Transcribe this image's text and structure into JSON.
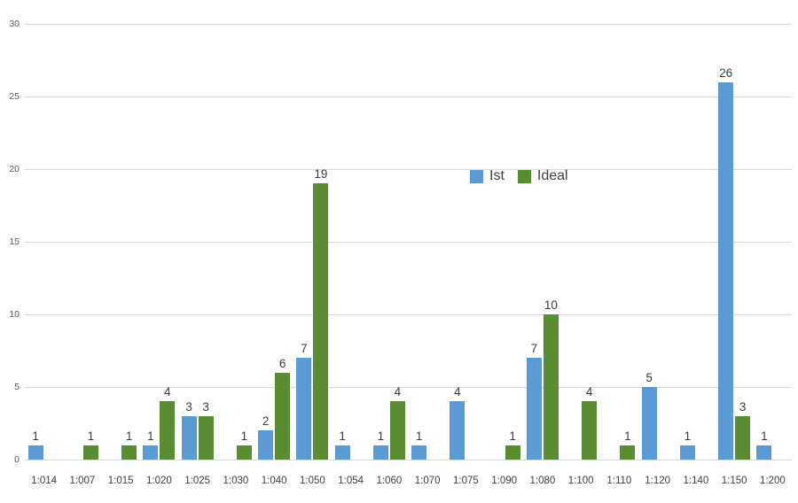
{
  "chart": {
    "background_color": "#ffffff",
    "gridline_color": "#d9d9d9",
    "value_label_color": "#3c3c3c",
    "category_label_color": "#404040",
    "ytick_label_color": "#595959"
  },
  "legend": {
    "items": [
      {
        "label": "Ist",
        "color": "#5B9BD5"
      },
      {
        "label": "Ideal",
        "color": "#5A8C32"
      }
    ]
  },
  "chart_data": {
    "type": "bar",
    "title": "",
    "xlabel": "",
    "ylabel": "",
    "categories": [
      "1:014",
      "1:007",
      "1:015",
      "1:020",
      "1:025",
      "1:030",
      "1:040",
      "1:050",
      "1:054",
      "1:060",
      "1:070",
      "1:075",
      "1:090",
      "1:080",
      "1:100",
      "1:110",
      "1:120",
      "1:140",
      "1:150",
      "1:200"
    ],
    "series": [
      {
        "name": "Ist",
        "color": "#5B9BD5",
        "values": [
          1,
          null,
          null,
          1,
          3,
          null,
          2,
          7,
          1,
          1,
          1,
          4,
          null,
          7,
          null,
          null,
          5,
          1,
          26,
          1
        ]
      },
      {
        "name": "Ideal",
        "color": "#5A8C32",
        "values": [
          null,
          1,
          1,
          4,
          3,
          1,
          6,
          19,
          null,
          4,
          null,
          null,
          1,
          10,
          4,
          1,
          null,
          null,
          3,
          null
        ]
      }
    ],
    "ylim": [
      0,
      30
    ],
    "yticks": [
      0,
      5,
      10,
      15,
      20,
      25,
      30
    ],
    "grid": true,
    "data_labels": true,
    "legend_position": "inside-top-center"
  }
}
